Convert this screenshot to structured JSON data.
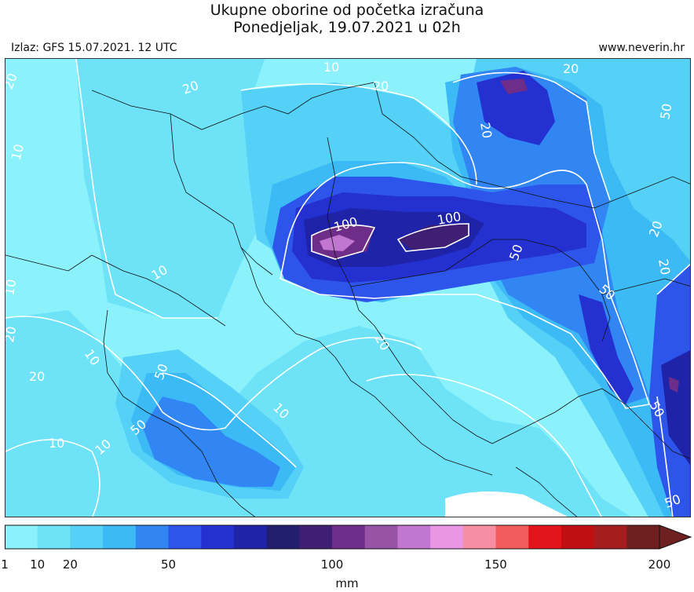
{
  "title": {
    "line1": "Ukupne oborine od početka izračuna",
    "line2": "Ponedjeljak, 19.07.2021 u 02h"
  },
  "meta": {
    "source": "Izlaz: GFS 15.07.2021. 12 UTC",
    "website": "www.neverin.hr"
  },
  "map": {
    "contour_labels": [
      {
        "text": "20",
        "id": "c20a"
      },
      {
        "text": "10",
        "id": "c10a"
      },
      {
        "text": "20",
        "id": "c20b"
      },
      {
        "text": "20",
        "id": "c20c"
      },
      {
        "text": "20",
        "id": "c20d"
      },
      {
        "text": "50",
        "id": "c50a"
      },
      {
        "text": "20",
        "id": "c20e"
      },
      {
        "text": "10",
        "id": "c10b"
      },
      {
        "text": "100",
        "id": "c100a"
      },
      {
        "text": "100",
        "id": "c100b"
      },
      {
        "text": "50",
        "id": "c50b"
      },
      {
        "text": "20",
        "id": "c20f"
      },
      {
        "text": "20",
        "id": "c20g"
      },
      {
        "text": "10",
        "id": "c10c"
      },
      {
        "text": "10",
        "id": "c10d"
      },
      {
        "text": "50",
        "id": "c50c"
      },
      {
        "text": "20",
        "id": "c20h"
      },
      {
        "text": "10",
        "id": "c10e"
      },
      {
        "text": "20",
        "id": "c20i"
      },
      {
        "text": "20",
        "id": "c20j"
      },
      {
        "text": "50",
        "id": "c50d"
      },
      {
        "text": "50",
        "id": "c50e"
      },
      {
        "text": "10",
        "id": "c10f"
      },
      {
        "text": "10",
        "id": "c10g"
      },
      {
        "text": "10",
        "id": "c10h"
      },
      {
        "text": "50",
        "id": "c50f"
      },
      {
        "text": "50",
        "id": "c50g"
      }
    ]
  },
  "colorbar": {
    "unit": "mm",
    "colors": [
      "#8bf1fb",
      "#6ee3f8",
      "#55d0f6",
      "#3cbaf6",
      "#3186f4",
      "#2d55ec",
      "#2430d0",
      "#1f23a8",
      "#22206e",
      "#3e1f74",
      "#6e2d88",
      "#9753a6",
      "#c176cf",
      "#e996e5",
      "#f78ea4",
      "#f35c5c",
      "#e4141c",
      "#c00f12",
      "#a51d1f",
      "#6e2020"
    ],
    "ticks": [
      {
        "label": "1",
        "value": 1
      },
      {
        "label": "10",
        "value": 10
      },
      {
        "label": "20",
        "value": 20
      },
      {
        "label": "50",
        "value": 50
      },
      {
        "label": "100",
        "value": 100
      },
      {
        "label": "150",
        "value": 150
      },
      {
        "label": "200",
        "value": 200
      }
    ]
  }
}
